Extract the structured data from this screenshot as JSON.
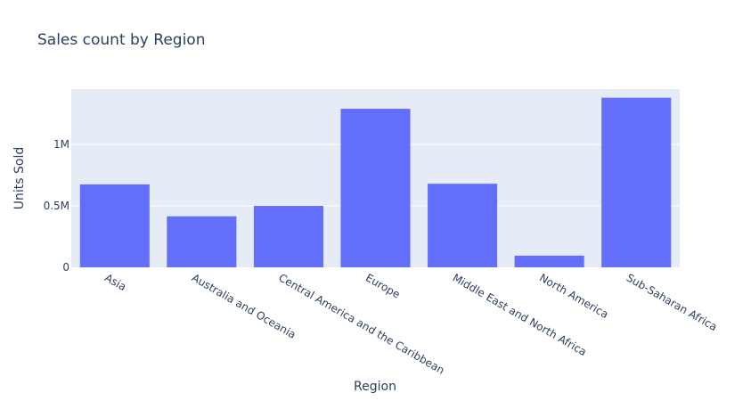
{
  "chart_data": {
    "type": "bar",
    "title": "Sales count by Region",
    "xlabel": "Region",
    "ylabel": "Units Sold",
    "categories": [
      "Asia",
      "Australia and Oceania",
      "Central America and the Caribbean",
      "Europe",
      "Middle East and North Africa",
      "North America",
      "Sub-Saharan Africa"
    ],
    "values": [
      675000,
      415000,
      500000,
      1290000,
      680000,
      95000,
      1380000
    ],
    "ylim": [
      0,
      1450000
    ],
    "yticks": [
      {
        "value": 0,
        "label": "0"
      },
      {
        "value": 500000,
        "label": "0.5M"
      },
      {
        "value": 1000000,
        "label": "1M"
      }
    ],
    "grid": true,
    "colors": {
      "bar": "#636efa",
      "plot_bg": "#e5ecf6",
      "grid": "#ffffff",
      "text": "#2a3f5f"
    }
  }
}
